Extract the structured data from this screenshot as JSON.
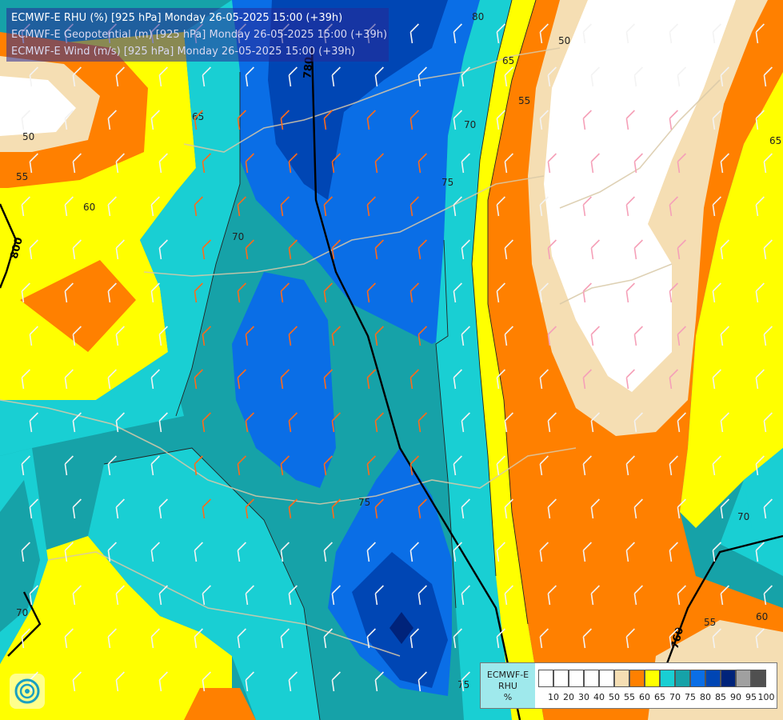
{
  "header": {
    "line1": "ECMWF-E RHU (%) [925 hPa] Monday 26-05-2025 15:00 (+39h)",
    "line2": "ECMWF-E Geopotential (m) [925 hPa] Monday 26-05-2025 15:00 (+39h)",
    "line3": "ECMWF-E Wind (m/s) [925 hPa] Monday 26-05-2025 15:00 (+39h)"
  },
  "legend": {
    "title_line1": "ECMWF-E",
    "title_line2": "RHU",
    "title_line3": "%",
    "ticks": [
      "10",
      "20",
      "30",
      "40",
      "50",
      "55",
      "60",
      "65",
      "70",
      "75",
      "80",
      "85",
      "90",
      "95",
      "100"
    ],
    "colors": [
      "#ffffff",
      "#ffffff",
      "#ffffff",
      "#ffffff",
      "#ffffff",
      "#f5deb3",
      "#ff8000",
      "#ffff00",
      "#19cfd3",
      "#16a2a8",
      "#0a6ee6",
      "#0046b4",
      "#00237a",
      "#a0a0a0",
      "#505050"
    ]
  },
  "palette": {
    "rh_50": "#ffffff",
    "rh_55": "#f5deb3",
    "rh_60": "#ff8000",
    "rh_65": "#ffff00",
    "rh_70": "#19cfd3",
    "rh_75": "#16a2a8",
    "rh_80": "#0a6ee6",
    "rh_85": "#0046b4",
    "rh_90": "#00237a"
  },
  "contour_labels": [
    "50",
    "55",
    "60",
    "65",
    "70",
    "75",
    "80"
  ],
  "geopotential_labels": [
    "780",
    "800",
    "760"
  ],
  "logo_icon": "ecmwf-swirl-icon"
}
